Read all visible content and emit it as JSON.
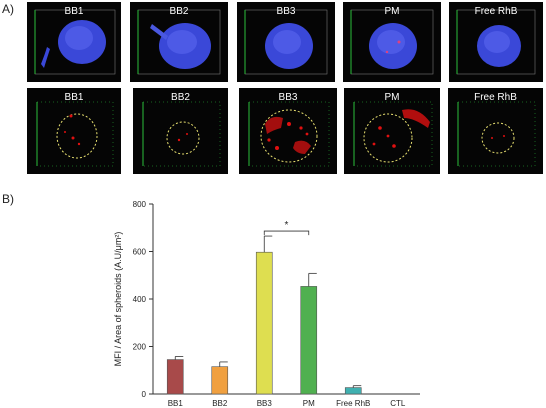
{
  "panel_a": {
    "label": "A)",
    "row1": [
      {
        "label": "BB1"
      },
      {
        "label": "BB2"
      },
      {
        "label": "BB3"
      },
      {
        "label": "PM"
      },
      {
        "label": "Free RhB"
      }
    ],
    "row2": [
      {
        "label": "BB1"
      },
      {
        "label": "BB2"
      },
      {
        "label": "BB3"
      },
      {
        "label": "PM"
      },
      {
        "label": "Free RhB"
      }
    ],
    "colors": {
      "spheroid": "#3a48d8",
      "frame": "#9a9a9a",
      "red_signal": "#e01010",
      "outline": "#e8e070",
      "axis_green": "#2bbf3a"
    }
  },
  "panel_b": {
    "label": "B)",
    "significance": "*"
  },
  "chart_data": {
    "type": "bar",
    "categories": [
      "BB1",
      "BB2",
      "BB3",
      "PM",
      "Free RhB",
      "CTL"
    ],
    "values": [
      145,
      115,
      597,
      453,
      27,
      0
    ],
    "errors": [
      13,
      20,
      68,
      55,
      8,
      0
    ],
    "colors": [
      "#a84a4a",
      "#f0a040",
      "#dede50",
      "#50b050",
      "#40b0b0",
      "#999999"
    ],
    "ylabel": "MFI / Area of spheroids (A.U/μm²)",
    "xlabel": "",
    "ylim": [
      0,
      800
    ],
    "yticks": [
      "0",
      "200",
      "400",
      "600",
      "800"
    ],
    "significance_between": [
      "BB3",
      "PM"
    ],
    "grid": false
  }
}
